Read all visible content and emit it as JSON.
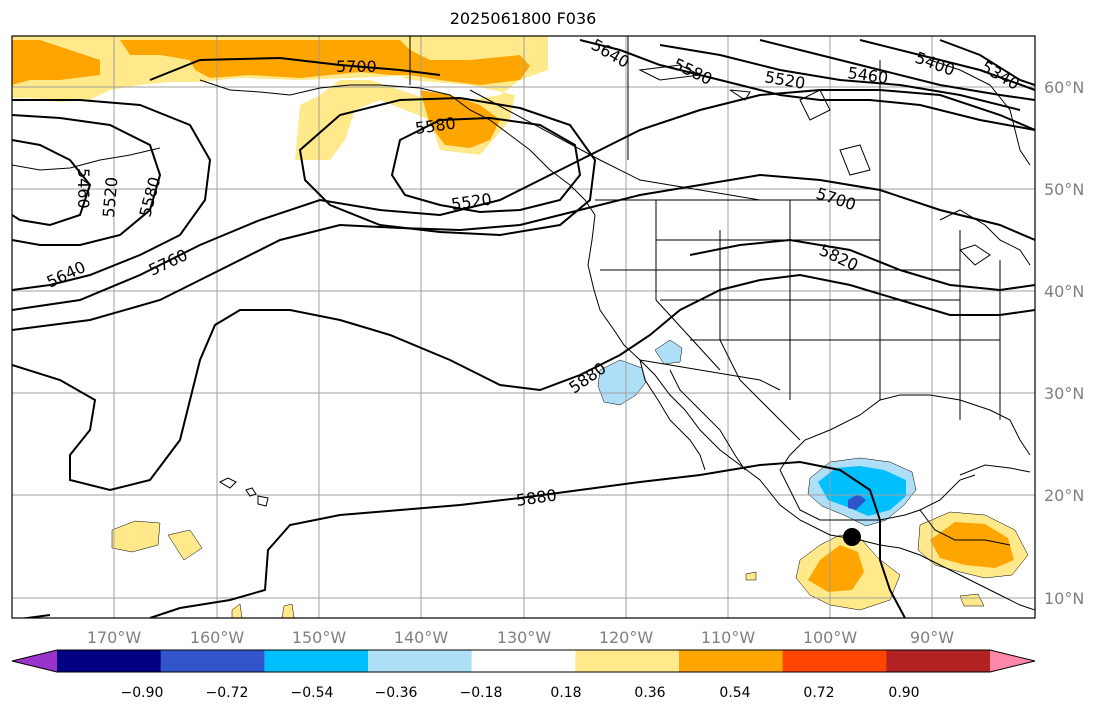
{
  "title": "2025061800 F036",
  "longitude_labels": [
    "170°W",
    "160°W",
    "150°W",
    "140°W",
    "130°W",
    "120°W",
    "110°W",
    "100°W",
    "90°W"
  ],
  "latitude_labels": [
    "60°N",
    "50°N",
    "40°N",
    "30°N",
    "20°N",
    "10°N"
  ],
  "contour_labels": [
    "5640",
    "5580",
    "5520",
    "5460",
    "5400",
    "5340",
    "5700",
    "5580",
    "5520",
    "5460",
    "5520",
    "5580",
    "5640",
    "5760",
    "5700",
    "5820",
    "5880",
    "5880"
  ],
  "colorbar": {
    "tick_labels": [
      "−0.90",
      "−0.72",
      "−0.54",
      "−0.36",
      "−0.18",
      "0.18",
      "0.36",
      "0.54",
      "0.72",
      "0.90"
    ],
    "colors": [
      "#9933cc",
      "#000080",
      "#3355cc",
      "#00bfff",
      "#aedff7",
      "#ffffff",
      "#ffe98a",
      "#ffa500",
      "#ff4500",
      "#b22222",
      "#ff88aa"
    ]
  },
  "marker": "storm-center-dot"
}
